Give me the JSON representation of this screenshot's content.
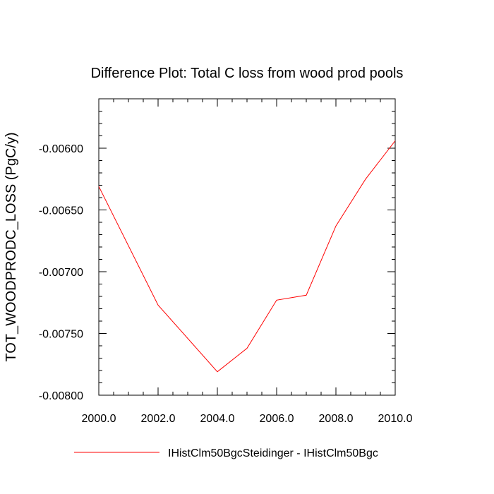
{
  "chart_data": {
    "type": "line",
    "title": "Difference Plot: Total C loss from wood prod pools",
    "xlabel": "",
    "ylabel": "TOT_WOODPRODC_LOSS  (PgC/y)",
    "xlim": [
      2000,
      2010
    ],
    "ylim": [
      -0.008,
      -0.0056
    ],
    "x_ticks": [
      2000,
      2002,
      2004,
      2006,
      2008,
      2010
    ],
    "x_tick_labels": [
      "2000.0",
      "2002.0",
      "2004.0",
      "2006.0",
      "2008.0",
      "2010.0"
    ],
    "y_ticks": [
      -0.008,
      -0.0075,
      -0.007,
      -0.0065,
      -0.006
    ],
    "y_tick_labels": [
      "-0.00800",
      "-0.00750",
      "-0.00700",
      "-0.00650",
      "-0.00600"
    ],
    "grid": false,
    "legend_position": "bottom",
    "series": [
      {
        "name": "IHistClm50BgcSteidinger - IHistClm50Bgc",
        "color": "#ff0000",
        "x": [
          2000,
          2002,
          2004,
          2005,
          2006,
          2007,
          2008,
          2009,
          2010
        ],
        "y": [
          -0.00631,
          -0.00727,
          -0.00781,
          -0.00762,
          -0.00723,
          -0.00719,
          -0.00663,
          -0.00625,
          -0.00594
        ]
      }
    ]
  }
}
